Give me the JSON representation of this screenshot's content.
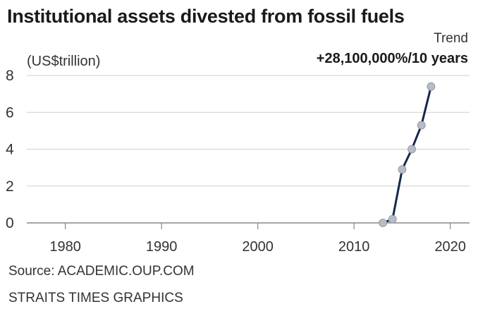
{
  "header": {
    "title": "Institutional assets divested from fossil fuels",
    "trend_label": "Trend",
    "trend_value": "+28,100,000%/10 years"
  },
  "footer": {
    "source": "Source: ACADEMIC.OUP.COM",
    "credit": "STRAITS TIMES GRAPHICS"
  },
  "chart_data": {
    "type": "line",
    "title": "Institutional assets divested from fossil fuels",
    "ylabel": "(US$trillion)",
    "xlabel": "",
    "xlim": [
      1976,
      2022
    ],
    "ylim": [
      0,
      8
    ],
    "x_ticks": [
      1980,
      1990,
      2000,
      2010,
      2020
    ],
    "y_ticks": [
      0,
      2,
      4,
      6,
      8
    ],
    "grid": true,
    "series": [
      {
        "x": [
          2013,
          2014,
          2015,
          2016,
          2017,
          2018
        ],
        "y": [
          0.0,
          0.2,
          2.9,
          4.0,
          5.3,
          7.4
        ]
      }
    ],
    "annotations": [
      "Trend",
      "+28,100,000%/10 years"
    ],
    "colors": {
      "line": "#14284b",
      "marker": "#b8bcc6",
      "grid": "#cfcfcf",
      "baseline": "#888888"
    }
  }
}
